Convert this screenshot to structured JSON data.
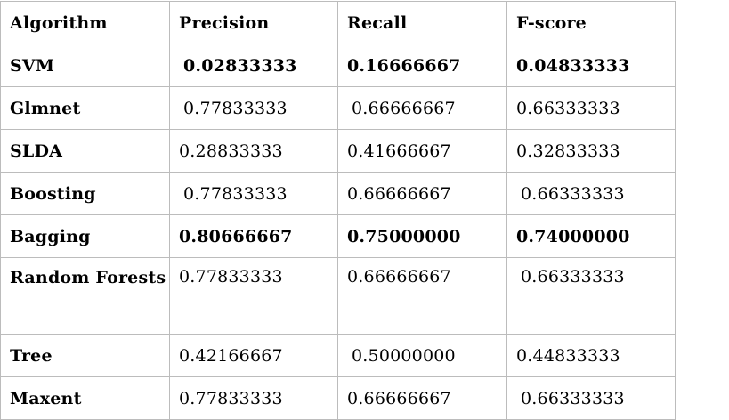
{
  "table": {
    "headers": [
      "Algorithm",
      "Precision",
      "Recall",
      "F-score"
    ],
    "rows": [
      {
        "algorithm": "SVM",
        "precision": "0.02833333",
        "recall": "0.16666667",
        "fscore": "0.04833333"
      },
      {
        "algorithm": "Glmnet",
        "precision": "0.77833333",
        "recall": "0.66666667",
        "fscore": "0.66333333"
      },
      {
        "algorithm": "SLDA",
        "precision": "0.28833333",
        "recall": "0.41666667",
        "fscore": "0.32833333"
      },
      {
        "algorithm": "Boosting",
        "precision": "0.77833333",
        "recall": "0.66666667",
        "fscore": "0.66333333"
      },
      {
        "algorithm": "Bagging",
        "precision": "0.80666667",
        "recall": "0.75000000",
        "fscore": "0.74000000"
      },
      {
        "algorithm": "Random Forests",
        "precision": "0.77833333",
        "recall": "0.66666667",
        "fscore": "0.66333333"
      },
      {
        "algorithm": "Tree",
        "precision": "0.42166667",
        "recall": "0.50000000",
        "fscore": "0.44833333"
      },
      {
        "algorithm": "Maxent",
        "precision": "0.77833333",
        "recall": "0.66666667",
        "fscore": "0.66333333"
      }
    ]
  }
}
